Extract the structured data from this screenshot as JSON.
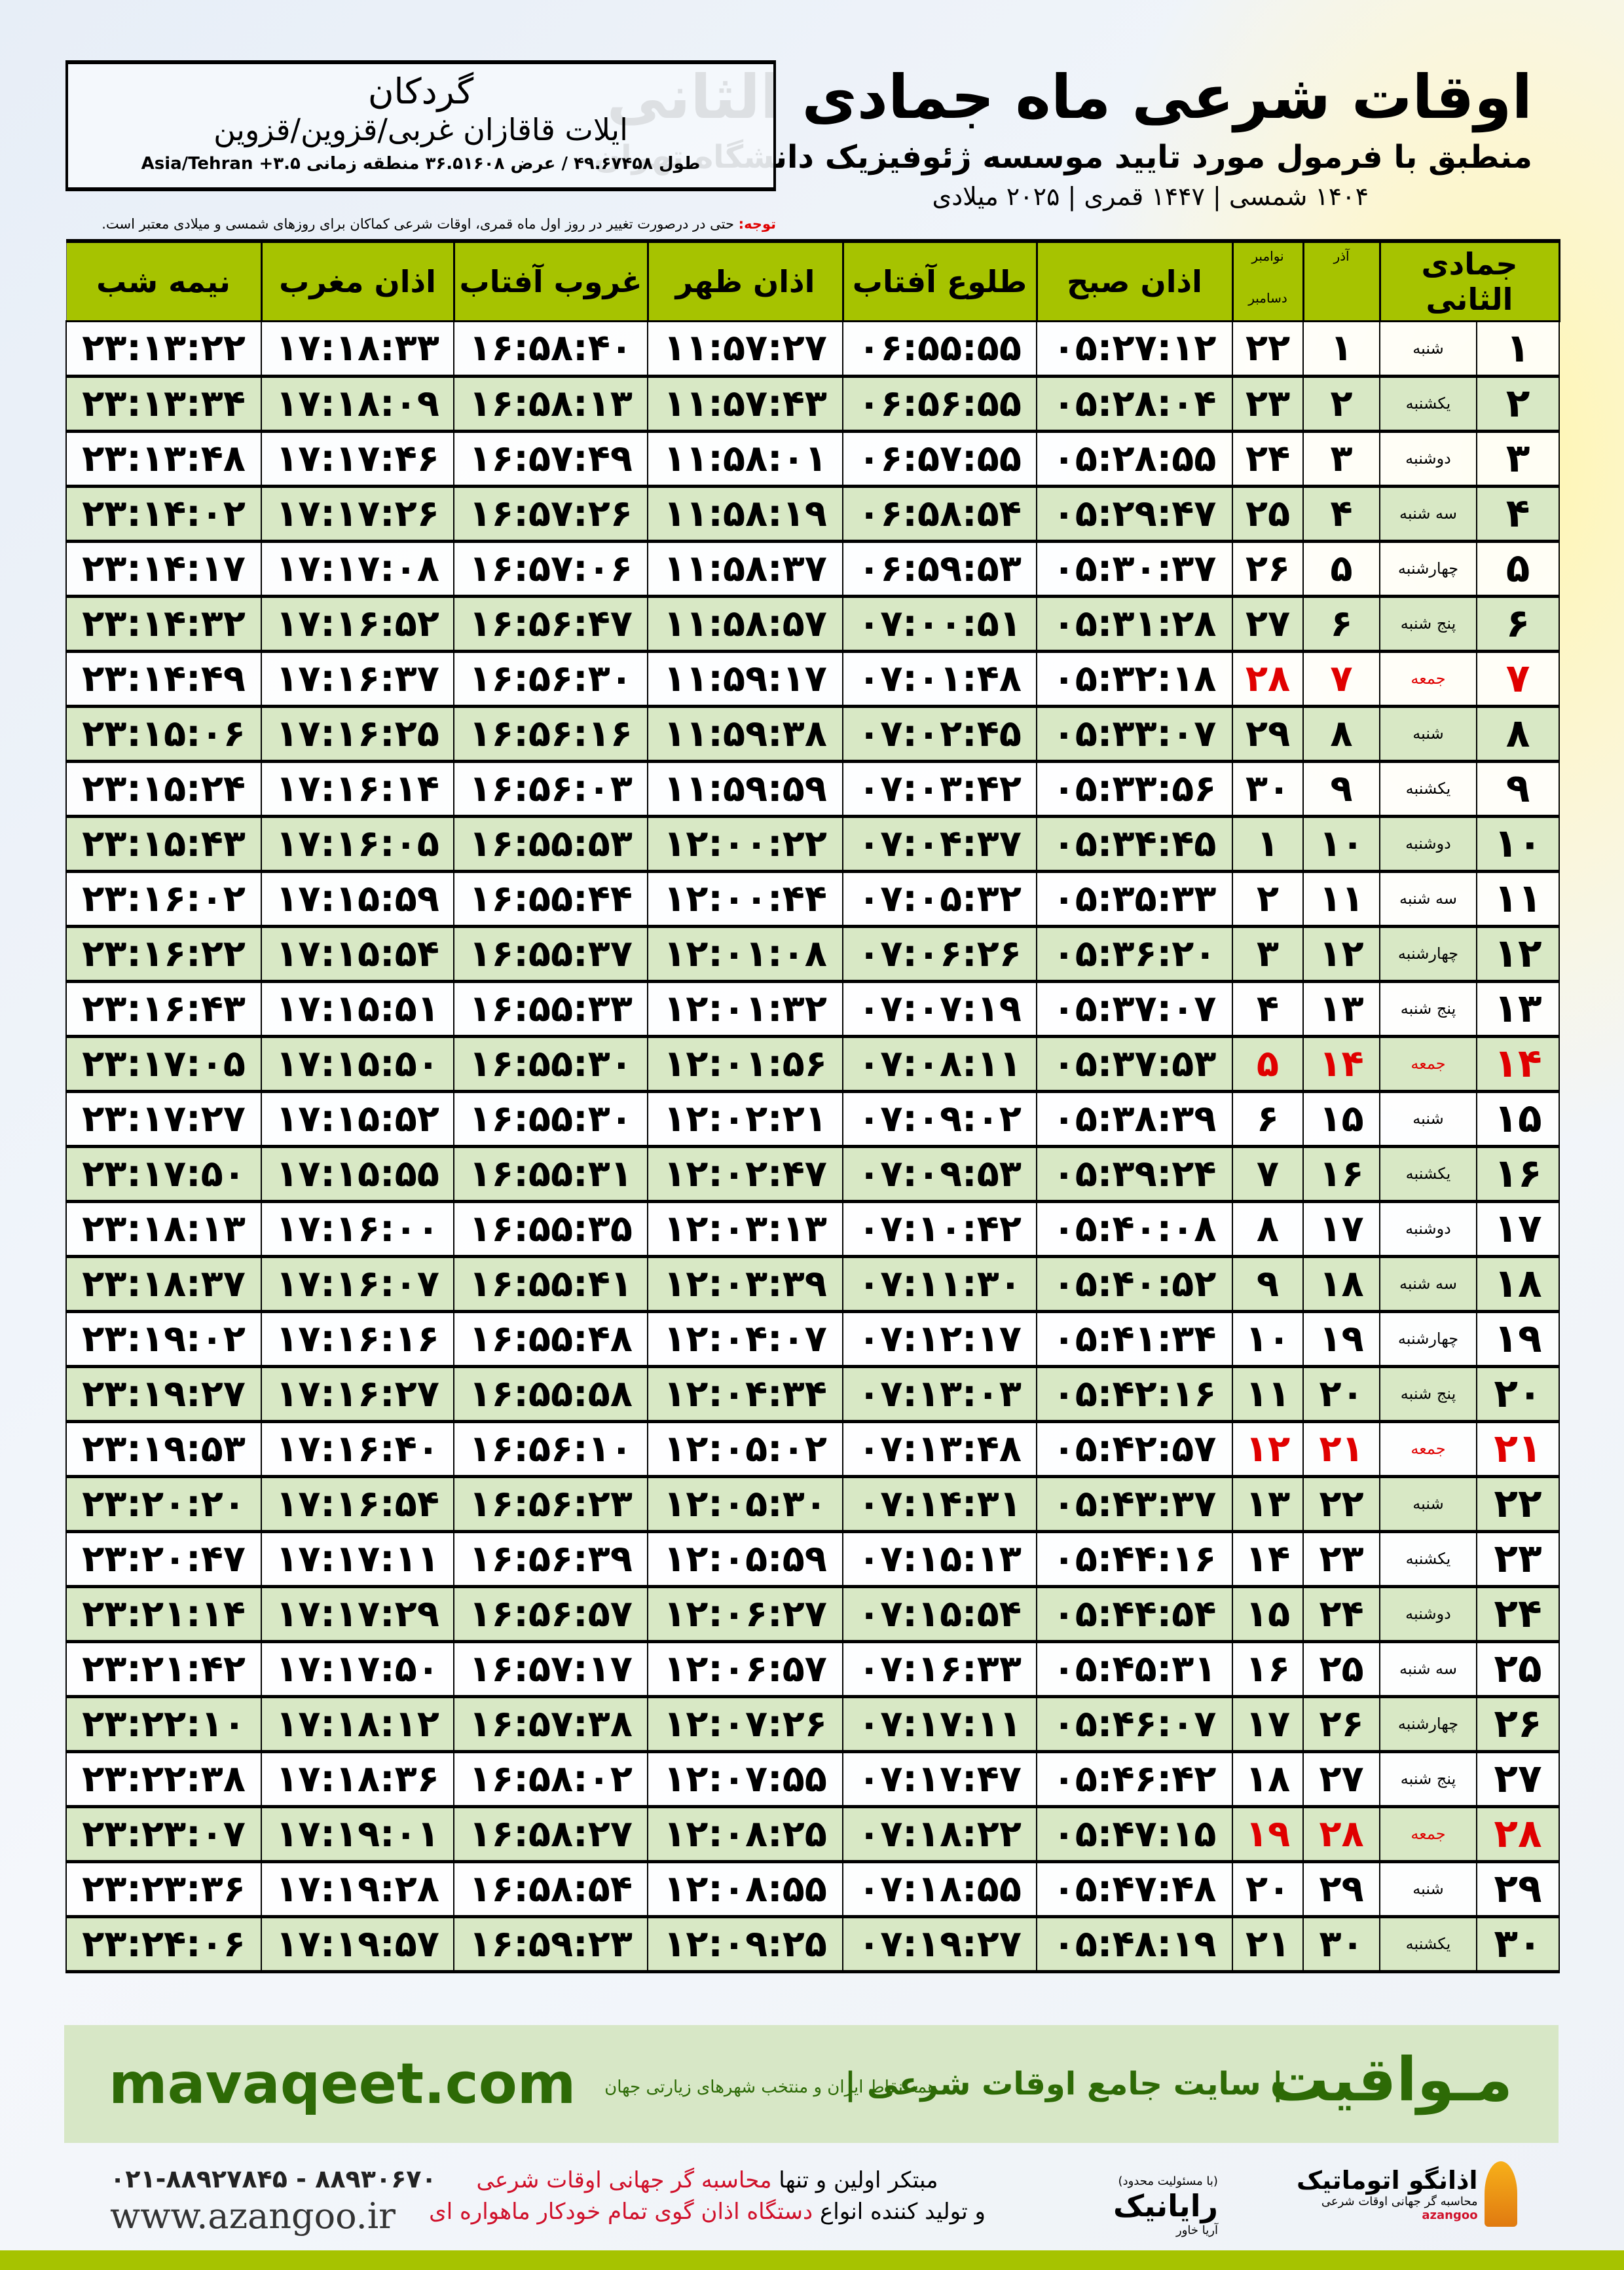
{
  "header": {
    "title": "اوقات شرعی ماه جمادی الثانی",
    "subtitle": "منطبق با فرمول مورد تایید موسسه ژئوفیزیک دانشگاه تهران",
    "years": "۱۴۰۴ شمسی | ۱۴۴۷ قمری | ۲۰۲۵ میلادی"
  },
  "location": {
    "city": "گردکان",
    "region": "ایلات قاقازان غربی/قزوین/قزوین",
    "coords": "طول ۴۹.۶۷۴۵۸ / عرض ۳۶.۵۱۶۰۸ منطقه زمانی ۳.۵+ Asia/Tehran"
  },
  "note": {
    "label": "توجه:",
    "text": " حتی در درصورت تغییر در روز اول ماه قمری، اوقات شرعی کماکان برای روزهای شمسی و میلادی معتبر است."
  },
  "colors": {
    "header_green": "#a6c300",
    "row_green": "#d8e8c5",
    "friday_red": "#e00000",
    "brand_green": "#2d6a06"
  },
  "table": {
    "headers": {
      "month": "جمادی الثانی",
      "azar": "آذر",
      "greg_top": "نوامبر",
      "greg_bottom": "دسامبر",
      "fajr": "اذان صبح",
      "sunrise": "طلوع آفتاب",
      "dhuhr": "اذان ظهر",
      "sunset": "غروب آفتاب",
      "maghrib": "اذان مغرب",
      "midnight": "نیمه شب"
    },
    "rows": [
      [
        "۱",
        "شنبه",
        "۱",
        "۲۲",
        "۰۵:۲۷:۱۲",
        "۰۶:۵۵:۵۵",
        "۱۱:۵۷:۲۷",
        "۱۶:۵۸:۴۰",
        "۱۷:۱۸:۳۳",
        "۲۳:۱۳:۲۲"
      ],
      [
        "۲",
        "یکشنبه",
        "۲",
        "۲۳",
        "۰۵:۲۸:۰۴",
        "۰۶:۵۶:۵۵",
        "۱۱:۵۷:۴۳",
        "۱۶:۵۸:۱۳",
        "۱۷:۱۸:۰۹",
        "۲۳:۱۳:۳۴"
      ],
      [
        "۳",
        "دوشنبه",
        "۳",
        "۲۴",
        "۰۵:۲۸:۵۵",
        "۰۶:۵۷:۵۵",
        "۱۱:۵۸:۰۱",
        "۱۶:۵۷:۴۹",
        "۱۷:۱۷:۴۶",
        "۲۳:۱۳:۴۸"
      ],
      [
        "۴",
        "سه شنبه",
        "۴",
        "۲۵",
        "۰۵:۲۹:۴۷",
        "۰۶:۵۸:۵۴",
        "۱۱:۵۸:۱۹",
        "۱۶:۵۷:۲۶",
        "۱۷:۱۷:۲۶",
        "۲۳:۱۴:۰۲"
      ],
      [
        "۵",
        "چهارشنبه",
        "۵",
        "۲۶",
        "۰۵:۳۰:۳۷",
        "۰۶:۵۹:۵۳",
        "۱۱:۵۸:۳۷",
        "۱۶:۵۷:۰۶",
        "۱۷:۱۷:۰۸",
        "۲۳:۱۴:۱۷"
      ],
      [
        "۶",
        "پنج شنبه",
        "۶",
        "۲۷",
        "۰۵:۳۱:۲۸",
        "۰۷:۰۰:۵۱",
        "۱۱:۵۸:۵۷",
        "۱۶:۵۶:۴۷",
        "۱۷:۱۶:۵۲",
        "۲۳:۱۴:۳۲"
      ],
      [
        "۷",
        "جمعه",
        "۷",
        "۲۸",
        "۰۵:۳۲:۱۸",
        "۰۷:۰۱:۴۸",
        "۱۱:۵۹:۱۷",
        "۱۶:۵۶:۳۰",
        "۱۷:۱۶:۳۷",
        "۲۳:۱۴:۴۹"
      ],
      [
        "۸",
        "شنبه",
        "۸",
        "۲۹",
        "۰۵:۳۳:۰۷",
        "۰۷:۰۲:۴۵",
        "۱۱:۵۹:۳۸",
        "۱۶:۵۶:۱۶",
        "۱۷:۱۶:۲۵",
        "۲۳:۱۵:۰۶"
      ],
      [
        "۹",
        "یکشنبه",
        "۹",
        "۳۰",
        "۰۵:۳۳:۵۶",
        "۰۷:۰۳:۴۲",
        "۱۱:۵۹:۵۹",
        "۱۶:۵۶:۰۳",
        "۱۷:۱۶:۱۴",
        "۲۳:۱۵:۲۴"
      ],
      [
        "۱۰",
        "دوشنبه",
        "۱۰",
        "۱",
        "۰۵:۳۴:۴۵",
        "۰۷:۰۴:۳۷",
        "۱۲:۰۰:۲۲",
        "۱۶:۵۵:۵۳",
        "۱۷:۱۶:۰۵",
        "۲۳:۱۵:۴۳"
      ],
      [
        "۱۱",
        "سه شنبه",
        "۱۱",
        "۲",
        "۰۵:۳۵:۳۳",
        "۰۷:۰۵:۳۲",
        "۱۲:۰۰:۴۴",
        "۱۶:۵۵:۴۴",
        "۱۷:۱۵:۵۹",
        "۲۳:۱۶:۰۲"
      ],
      [
        "۱۲",
        "چهارشنبه",
        "۱۲",
        "۳",
        "۰۵:۳۶:۲۰",
        "۰۷:۰۶:۲۶",
        "۱۲:۰۱:۰۸",
        "۱۶:۵۵:۳۷",
        "۱۷:۱۵:۵۴",
        "۲۳:۱۶:۲۲"
      ],
      [
        "۱۳",
        "پنج شنبه",
        "۱۳",
        "۴",
        "۰۵:۳۷:۰۷",
        "۰۷:۰۷:۱۹",
        "۱۲:۰۱:۳۲",
        "۱۶:۵۵:۳۳",
        "۱۷:۱۵:۵۱",
        "۲۳:۱۶:۴۳"
      ],
      [
        "۱۴",
        "جمعه",
        "۱۴",
        "۵",
        "۰۵:۳۷:۵۳",
        "۰۷:۰۸:۱۱",
        "۱۲:۰۱:۵۶",
        "۱۶:۵۵:۳۰",
        "۱۷:۱۵:۵۰",
        "۲۳:۱۷:۰۵"
      ],
      [
        "۱۵",
        "شنبه",
        "۱۵",
        "۶",
        "۰۵:۳۸:۳۹",
        "۰۷:۰۹:۰۲",
        "۱۲:۰۲:۲۱",
        "۱۶:۵۵:۳۰",
        "۱۷:۱۵:۵۲",
        "۲۳:۱۷:۲۷"
      ],
      [
        "۱۶",
        "یکشنبه",
        "۱۶",
        "۷",
        "۰۵:۳۹:۲۴",
        "۰۷:۰۹:۵۳",
        "۱۲:۰۲:۴۷",
        "۱۶:۵۵:۳۱",
        "۱۷:۱۵:۵۵",
        "۲۳:۱۷:۵۰"
      ],
      [
        "۱۷",
        "دوشنبه",
        "۱۷",
        "۸",
        "۰۵:۴۰:۰۸",
        "۰۷:۱۰:۴۲",
        "۱۲:۰۳:۱۳",
        "۱۶:۵۵:۳۵",
        "۱۷:۱۶:۰۰",
        "۲۳:۱۸:۱۳"
      ],
      [
        "۱۸",
        "سه شنبه",
        "۱۸",
        "۹",
        "۰۵:۴۰:۵۲",
        "۰۷:۱۱:۳۰",
        "۱۲:۰۳:۳۹",
        "۱۶:۵۵:۴۱",
        "۱۷:۱۶:۰۷",
        "۲۳:۱۸:۳۷"
      ],
      [
        "۱۹",
        "چهارشنبه",
        "۱۹",
        "۱۰",
        "۰۵:۴۱:۳۴",
        "۰۷:۱۲:۱۷",
        "۱۲:۰۴:۰۷",
        "۱۶:۵۵:۴۸",
        "۱۷:۱۶:۱۶",
        "۲۳:۱۹:۰۲"
      ],
      [
        "۲۰",
        "پنج شنبه",
        "۲۰",
        "۱۱",
        "۰۵:۴۲:۱۶",
        "۰۷:۱۳:۰۳",
        "۱۲:۰۴:۳۴",
        "۱۶:۵۵:۵۸",
        "۱۷:۱۶:۲۷",
        "۲۳:۱۹:۲۷"
      ],
      [
        "۲۱",
        "جمعه",
        "۲۱",
        "۱۲",
        "۰۵:۴۲:۵۷",
        "۰۷:۱۳:۴۸",
        "۱۲:۰۵:۰۲",
        "۱۶:۵۶:۱۰",
        "۱۷:۱۶:۴۰",
        "۲۳:۱۹:۵۳"
      ],
      [
        "۲۲",
        "شنبه",
        "۲۲",
        "۱۳",
        "۰۵:۴۳:۳۷",
        "۰۷:۱۴:۳۱",
        "۱۲:۰۵:۳۰",
        "۱۶:۵۶:۲۳",
        "۱۷:۱۶:۵۴",
        "۲۳:۲۰:۲۰"
      ],
      [
        "۲۳",
        "یکشنبه",
        "۲۳",
        "۱۴",
        "۰۵:۴۴:۱۶",
        "۰۷:۱۵:۱۳",
        "۱۲:۰۵:۵۹",
        "۱۶:۵۶:۳۹",
        "۱۷:۱۷:۱۱",
        "۲۳:۲۰:۴۷"
      ],
      [
        "۲۴",
        "دوشنبه",
        "۲۴",
        "۱۵",
        "۰۵:۴۴:۵۴",
        "۰۷:۱۵:۵۴",
        "۱۲:۰۶:۲۷",
        "۱۶:۵۶:۵۷",
        "۱۷:۱۷:۲۹",
        "۲۳:۲۱:۱۴"
      ],
      [
        "۲۵",
        "سه شنبه",
        "۲۵",
        "۱۶",
        "۰۵:۴۵:۳۱",
        "۰۷:۱۶:۳۳",
        "۱۲:۰۶:۵۷",
        "۱۶:۵۷:۱۷",
        "۱۷:۱۷:۵۰",
        "۲۳:۲۱:۴۲"
      ],
      [
        "۲۶",
        "چهارشنبه",
        "۲۶",
        "۱۷",
        "۰۵:۴۶:۰۷",
        "۰۷:۱۷:۱۱",
        "۱۲:۰۷:۲۶",
        "۱۶:۵۷:۳۸",
        "۱۷:۱۸:۱۲",
        "۲۳:۲۲:۱۰"
      ],
      [
        "۲۷",
        "پنج شنبه",
        "۲۷",
        "۱۸",
        "۰۵:۴۶:۴۲",
        "۰۷:۱۷:۴۷",
        "۱۲:۰۷:۵۵",
        "۱۶:۵۸:۰۲",
        "۱۷:۱۸:۳۶",
        "۲۳:۲۲:۳۸"
      ],
      [
        "۲۸",
        "جمعه",
        "۲۸",
        "۱۹",
        "۰۵:۴۷:۱۵",
        "۰۷:۱۸:۲۲",
        "۱۲:۰۸:۲۵",
        "۱۶:۵۸:۲۷",
        "۱۷:۱۹:۰۱",
        "۲۳:۲۳:۰۷"
      ],
      [
        "۲۹",
        "شنبه",
        "۲۹",
        "۲۰",
        "۰۵:۴۷:۴۸",
        "۰۷:۱۸:۵۵",
        "۱۲:۰۸:۵۵",
        "۱۶:۵۸:۵۴",
        "۱۷:۱۹:۲۸",
        "۲۳:۲۳:۳۶"
      ],
      [
        "۳۰",
        "یکشنبه",
        "۳۰",
        "۲۱",
        "۰۵:۴۸:۱۹",
        "۰۷:۱۹:۲۷",
        "۱۲:۰۹:۲۵",
        "۱۶:۵۹:۲۳",
        "۱۷:۱۹:۵۷",
        "۲۳:۲۴:۰۶"
      ]
    ]
  },
  "banner": {
    "brand": "مـواقیت",
    "slogan": "| سایت جامع اوقات شرعی |",
    "sub": "همه نقاط ایران و منتخب شهرهای زیارتی جهان",
    "url": "mavaqeet.com"
  },
  "footer": {
    "phones": "۰۲۱-۸۸۹۲۷۸۴۵ - ۸۸۹۳۰۶۷۰",
    "website": "www.azangoo.ir",
    "promo_line1_a": "مبتکر اولین و تنها ",
    "promo_line1_b": "محاسبه گر جهانی اوقات شرعی",
    "promo_line2_a": "و تولید کننده انواع ",
    "promo_line2_b": "دستگاه اذان گوی تمام خودکار ماهواره ای",
    "rayanik_small": "(با مسئولیت محدود)",
    "rayanik": "رایانیک",
    "rayanik_sub": "آریا خاور",
    "azangoo": "اذانگو اتوماتیک",
    "azangoo_sub": "محاسبه گر جهانی اوقات شرعی",
    "azangoo_en": "azangoo"
  }
}
